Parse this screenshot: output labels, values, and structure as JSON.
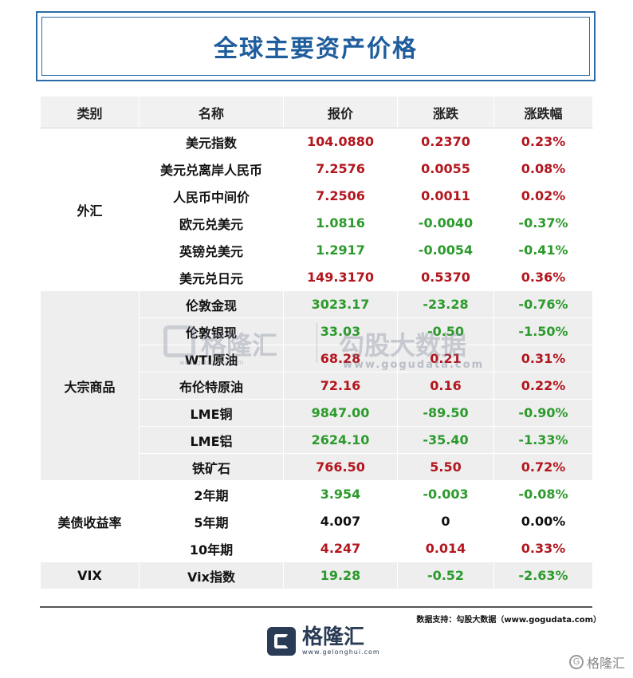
{
  "title": "全球主要资产价格",
  "columns": [
    "类别",
    "名称",
    "报价",
    "涨跌",
    "涨跌幅"
  ],
  "groups": [
    {
      "category": "外汇",
      "rows": [
        {
          "name": "美元指数",
          "price": "104.0880",
          "change": "0.2370",
          "pct": "0.23%",
          "dir": "up"
        },
        {
          "name": "美元兑离岸人民币",
          "price": "7.2576",
          "change": "0.0055",
          "pct": "0.08%",
          "dir": "up"
        },
        {
          "name": "人民币中间价",
          "price": "7.2506",
          "change": "0.0011",
          "pct": "0.02%",
          "dir": "up"
        },
        {
          "name": "欧元兑美元",
          "price": "1.0816",
          "change": "-0.0040",
          "pct": "-0.37%",
          "dir": "down"
        },
        {
          "name": "英镑兑美元",
          "price": "1.2917",
          "change": "-0.0054",
          "pct": "-0.41%",
          "dir": "down"
        },
        {
          "name": "美元兑日元",
          "price": "149.3170",
          "change": "0.5370",
          "pct": "0.36%",
          "dir": "up"
        }
      ]
    },
    {
      "category": "大宗商品",
      "rows": [
        {
          "name": "伦敦金现",
          "price": "3023.17",
          "change": "-23.28",
          "pct": "-0.76%",
          "dir": "down"
        },
        {
          "name": "伦敦银现",
          "price": "33.03",
          "change": "-0.50",
          "pct": "-1.50%",
          "dir": "down"
        },
        {
          "name": "WTI原油",
          "price": "68.28",
          "change": "0.21",
          "pct": "0.31%",
          "dir": "up"
        },
        {
          "name": "布伦特原油",
          "price": "72.16",
          "change": "0.16",
          "pct": "0.22%",
          "dir": "up"
        },
        {
          "name": "LME铜",
          "price": "9847.00",
          "change": "-89.50",
          "pct": "-0.90%",
          "dir": "down"
        },
        {
          "name": "LME铝",
          "price": "2624.10",
          "change": "-35.40",
          "pct": "-1.33%",
          "dir": "down"
        },
        {
          "name": "铁矿石",
          "price": "766.50",
          "change": "5.50",
          "pct": "0.72%",
          "dir": "up"
        }
      ]
    },
    {
      "category": "美债收益率",
      "rows": [
        {
          "name": "2年期",
          "price": "3.954",
          "change": "-0.003",
          "pct": "-0.08%",
          "dir": "down"
        },
        {
          "name": "5年期",
          "price": "4.007",
          "change": "0",
          "pct": "0.00%",
          "dir": "flat"
        },
        {
          "name": "10年期",
          "price": "4.247",
          "change": "0.014",
          "pct": "0.33%",
          "dir": "up"
        }
      ]
    },
    {
      "category": "VIX",
      "rows": [
        {
          "name": "Vix指数",
          "price": "19.28",
          "change": "-0.52",
          "pct": "-2.63%",
          "dir": "down"
        }
      ]
    }
  ],
  "source": "数据支持：勾股大数据（www.gogudata.com）",
  "logo": {
    "name": "格隆汇",
    "url": "www.gelonghui.com"
  },
  "watermark": {
    "left": "格隆汇",
    "left_url": "www.gelonghui.com",
    "right": "勾股大数据",
    "right_url": "www.gogudata.com"
  },
  "corner_mark": "格隆汇",
  "colors": {
    "up": "#b3161e",
    "down": "#2c9a2c",
    "title": "#1f5d9c",
    "frame": "#2b6ca8"
  }
}
